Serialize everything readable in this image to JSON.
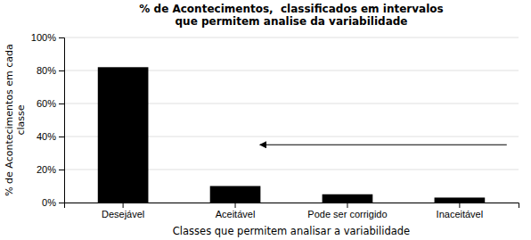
{
  "chart_data": {
    "type": "bar",
    "title": "% de Acontecimentos,  classificados em intervalos\nque permitem analise da variabilidade",
    "x_label": "Classes que permitem analisar a variabilidade",
    "y_label": "% de Acontecimentos em cada\nclasse",
    "categories": [
      "Desejável",
      "Aceitável",
      "Pode ser corrigido",
      "Inaceitável"
    ],
    "values": [
      82,
      10,
      5,
      3
    ],
    "color": "#000000",
    "ylim": [
      0,
      100
    ],
    "yticks": [
      {
        "value": 0,
        "label": "0%"
      },
      {
        "value": 20,
        "label": "20%"
      },
      {
        "value": 40,
        "label": "40%"
      },
      {
        "value": 60,
        "label": "60%"
      },
      {
        "value": 80,
        "label": "80%"
      },
      {
        "value": 100,
        "label": "100%"
      }
    ],
    "grid": true,
    "arrows": [
      {
        "x_start": 3.42,
        "x_end": 1.22,
        "y": 35
      }
    ]
  }
}
